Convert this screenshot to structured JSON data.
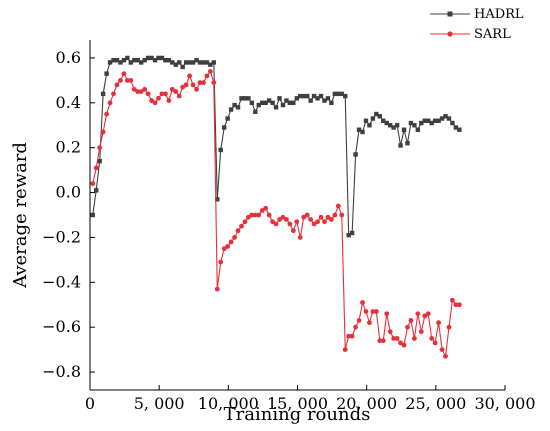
{
  "chart_data": {
    "type": "line",
    "title": "",
    "xlabel": "Training rounds",
    "ylabel": "Average reward",
    "xlim": [
      0,
      30000
    ],
    "ylim": [
      -0.88,
      0.68
    ],
    "xticks": [
      0,
      5000,
      10000,
      15000,
      20000,
      25000,
      30000
    ],
    "xtick_labels": [
      "0",
      "5, 000",
      "10, 000",
      "15, 000",
      "20, 000",
      "25, 000",
      "30, 000"
    ],
    "yticks": [
      -0.8,
      -0.6,
      -0.4,
      -0.2,
      0.0,
      0.2,
      0.4,
      0.6
    ],
    "ytick_labels": [
      "−0.8",
      "−0.6",
      "−0.4",
      "−0.2",
      "0.0",
      "0.2",
      "0.4",
      "0.6"
    ],
    "grid": false,
    "legend_position": "top-right",
    "series": [
      {
        "name": "HADRL",
        "color": "#3f3f3f",
        "marker": "square",
        "x": [
          200,
          450,
          700,
          950,
          1200,
          1450,
          1700,
          1950,
          2200,
          2450,
          2700,
          2950,
          3200,
          3450,
          3700,
          3950,
          4200,
          4450,
          4700,
          4950,
          5200,
          5450,
          5700,
          5950,
          6200,
          6450,
          6700,
          6950,
          7200,
          7450,
          7700,
          7950,
          8200,
          8450,
          8700,
          8950,
          9200,
          9450,
          9700,
          9950,
          10200,
          10450,
          10700,
          10950,
          11200,
          11450,
          11700,
          11950,
          12200,
          12450,
          12700,
          12950,
          13200,
          13450,
          13700,
          13950,
          14200,
          14450,
          14700,
          14950,
          15200,
          15450,
          15700,
          15950,
          16200,
          16450,
          16700,
          16950,
          17200,
          17450,
          17700,
          17950,
          18200,
          18450,
          18700,
          18950,
          19200,
          19450,
          19700,
          19950,
          20200,
          20450,
          20700,
          20950,
          21200,
          21450,
          21700,
          21950,
          22200,
          22450,
          22700,
          22950,
          23200,
          23450,
          23700,
          23950,
          24200,
          24450,
          24700,
          24950,
          25200,
          25450,
          25700,
          25950,
          26200,
          26450,
          26700
        ],
        "y": [
          -0.1,
          0.01,
          0.14,
          0.44,
          0.53,
          0.58,
          0.59,
          0.59,
          0.58,
          0.59,
          0.6,
          0.58,
          0.59,
          0.59,
          0.58,
          0.59,
          0.6,
          0.6,
          0.59,
          0.6,
          0.6,
          0.59,
          0.59,
          0.58,
          0.57,
          0.58,
          0.56,
          0.58,
          0.58,
          0.58,
          0.59,
          0.58,
          0.58,
          0.58,
          0.57,
          0.58,
          -0.03,
          0.19,
          0.29,
          0.33,
          0.37,
          0.39,
          0.38,
          0.42,
          0.42,
          0.42,
          0.4,
          0.36,
          0.39,
          0.4,
          0.4,
          0.41,
          0.4,
          0.38,
          0.42,
          0.39,
          0.41,
          0.4,
          0.4,
          0.42,
          0.43,
          0.43,
          0.43,
          0.41,
          0.43,
          0.42,
          0.43,
          0.41,
          0.42,
          0.4,
          0.44,
          0.44,
          0.44,
          0.43,
          -0.19,
          -0.18,
          0.17,
          0.28,
          0.27,
          0.32,
          0.3,
          0.33,
          0.35,
          0.34,
          0.32,
          0.31,
          0.3,
          0.29,
          0.3,
          0.21,
          0.28,
          0.22,
          0.31,
          0.3,
          0.28,
          0.31,
          0.32,
          0.32,
          0.31,
          0.32,
          0.32,
          0.33,
          0.34,
          0.33,
          0.31,
          0.29,
          0.28
        ]
      },
      {
        "name": "SARL",
        "color": "#e8303a",
        "marker": "circle",
        "x": [
          200,
          450,
          700,
          950,
          1200,
          1450,
          1700,
          1950,
          2200,
          2450,
          2700,
          2950,
          3200,
          3450,
          3700,
          3950,
          4200,
          4450,
          4700,
          4950,
          5200,
          5450,
          5700,
          5950,
          6200,
          6450,
          6700,
          6950,
          7200,
          7450,
          7700,
          7950,
          8200,
          8450,
          8700,
          8950,
          9200,
          9450,
          9700,
          9950,
          10200,
          10450,
          10700,
          10950,
          11200,
          11450,
          11700,
          11950,
          12200,
          12450,
          12700,
          12950,
          13200,
          13450,
          13700,
          13950,
          14200,
          14450,
          14700,
          14950,
          15200,
          15450,
          15700,
          15950,
          16200,
          16450,
          16700,
          16950,
          17200,
          17450,
          17700,
          17950,
          18200,
          18450,
          18700,
          18950,
          19200,
          19450,
          19700,
          19950,
          20200,
          20450,
          20700,
          20950,
          21200,
          21450,
          21700,
          21950,
          22200,
          22450,
          22700,
          22950,
          23200,
          23450,
          23700,
          23950,
          24200,
          24450,
          24700,
          24950,
          25200,
          25450,
          25700,
          25950,
          26200,
          26450,
          26700
        ],
        "y": [
          0.04,
          0.11,
          0.2,
          0.27,
          0.35,
          0.4,
          0.44,
          0.48,
          0.5,
          0.53,
          0.5,
          0.5,
          0.46,
          0.45,
          0.45,
          0.46,
          0.44,
          0.41,
          0.4,
          0.42,
          0.44,
          0.44,
          0.41,
          0.46,
          0.45,
          0.43,
          0.47,
          0.48,
          0.52,
          0.48,
          0.46,
          0.49,
          0.49,
          0.52,
          0.54,
          0.49,
          -0.43,
          -0.31,
          -0.25,
          -0.24,
          -0.22,
          -0.2,
          -0.17,
          -0.15,
          -0.13,
          -0.11,
          -0.1,
          -0.1,
          -0.1,
          -0.08,
          -0.07,
          -0.1,
          -0.13,
          -0.14,
          -0.12,
          -0.11,
          -0.12,
          -0.14,
          -0.17,
          -0.13,
          -0.2,
          -0.11,
          -0.1,
          -0.12,
          -0.14,
          -0.13,
          -0.11,
          -0.13,
          -0.11,
          -0.12,
          -0.1,
          -0.06,
          -0.1,
          -0.7,
          -0.64,
          -0.64,
          -0.6,
          -0.57,
          -0.49,
          -0.53,
          -0.58,
          -0.53,
          -0.53,
          -0.66,
          -0.66,
          -0.54,
          -0.62,
          -0.65,
          -0.65,
          -0.67,
          -0.68,
          -0.6,
          -0.57,
          -0.65,
          -0.54,
          -0.62,
          -0.55,
          -0.54,
          -0.65,
          -0.67,
          -0.58,
          -0.7,
          -0.73,
          -0.6,
          -0.48,
          -0.5,
          -0.5
        ]
      }
    ]
  }
}
